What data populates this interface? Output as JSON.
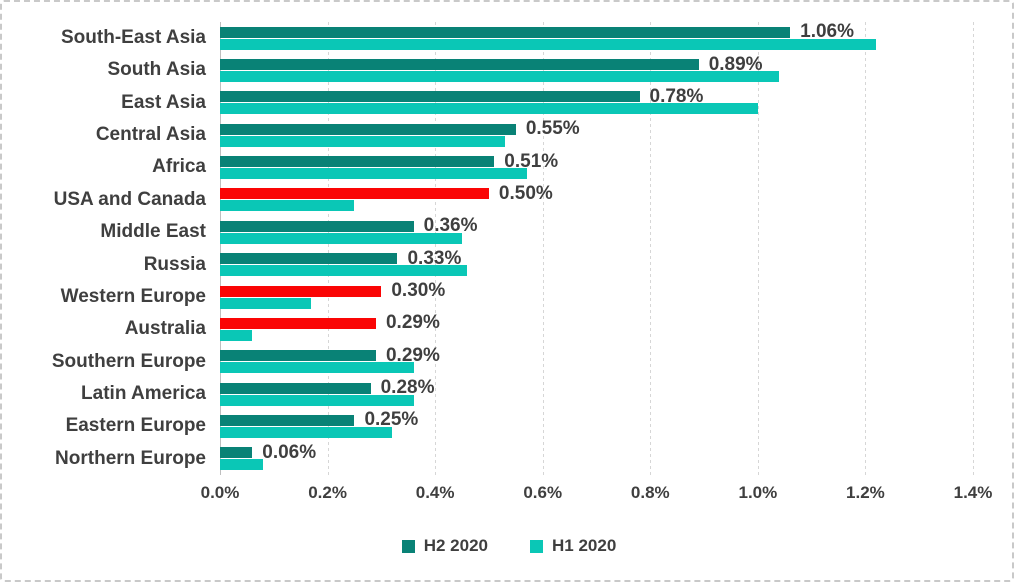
{
  "frame": {
    "background_color": "#ffffff",
    "border_color": "#c9c9c9"
  },
  "chart_data": {
    "type": "bar",
    "orientation": "horizontal",
    "title": "",
    "xlabel": "",
    "ylabel": "",
    "xlim": [
      0,
      1.4
    ],
    "grid": true,
    "categories": [
      "South-East Asia",
      "South Asia",
      "East Asia",
      "Central Asia",
      "Africa",
      "USA and Canada",
      "Middle East",
      "Russia",
      "Western Europe",
      "Australia",
      "Southern Europe",
      "Latin America",
      "Eastern Europe",
      "Northern Europe"
    ],
    "series": [
      {
        "name": "H2 2020",
        "values": [
          1.06,
          0.89,
          0.78,
          0.55,
          0.51,
          0.5,
          0.36,
          0.33,
          0.3,
          0.29,
          0.29,
          0.28,
          0.25,
          0.06
        ],
        "color": "#098276",
        "highlight_color": "#fa0505",
        "highlighted_categories": [
          "USA and Canada",
          "Western Europe",
          "Australia"
        ]
      },
      {
        "name": "H1 2020",
        "values": [
          1.22,
          1.04,
          1.0,
          0.53,
          0.57,
          0.25,
          0.45,
          0.46,
          0.17,
          0.06,
          0.36,
          0.36,
          0.32,
          0.08
        ],
        "color": "#0ac7b6"
      }
    ],
    "data_labels": [
      "1.06%",
      "0.89%",
      "0.78%",
      "0.55%",
      "0.51%",
      "0.50%",
      "0.36%",
      "0.33%",
      "0.30%",
      "0.29%",
      "0.29%",
      "0.28%",
      "0.25%",
      "0.06%"
    ],
    "x_ticks": [
      "0.0%",
      "0.2%",
      "0.4%",
      "0.6%",
      "0.8%",
      "1.0%",
      "1.2%",
      "1.4%"
    ],
    "legend": {
      "position": "bottom",
      "entries": [
        {
          "label": "H2 2020",
          "color": "#098276"
        },
        {
          "label": "H1 2020",
          "color": "#0ac7b6"
        }
      ]
    },
    "text_color": "#3f3f3f",
    "gridline_color": "#d6d6d6",
    "axis_line_color": "#bfbfbf"
  }
}
